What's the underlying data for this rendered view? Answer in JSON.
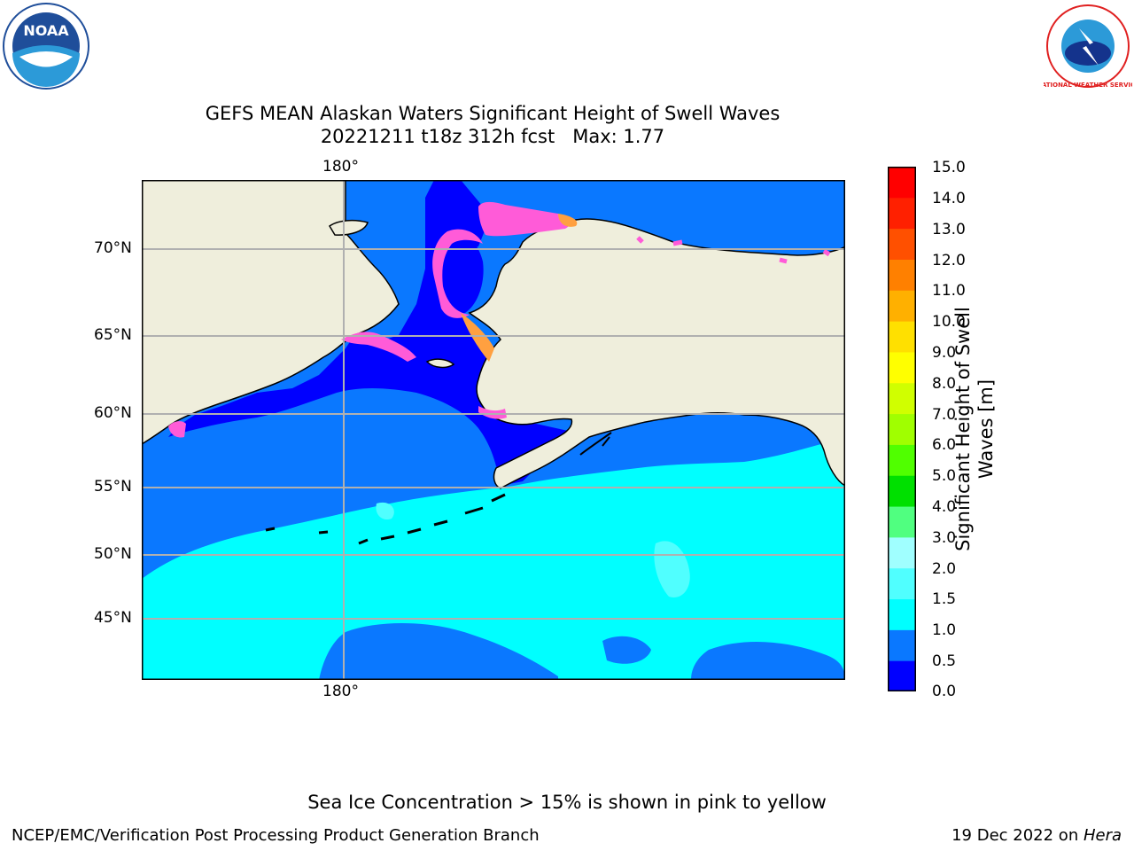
{
  "header": {
    "title_line1": "GEFS MEAN Alaskan Waters Significant Height of Swell Waves",
    "title_line2": "20221211 t18z 312h fcst   Max: 1.77"
  },
  "logos": {
    "left": {
      "name": "NOAA",
      "text": "NOAA",
      "color": "#1f4e9a"
    },
    "right": {
      "name": "National Weather Service",
      "text": "NATIONAL WEATHER SERVICE",
      "color": "#e02020"
    }
  },
  "map": {
    "lon_label_top": "180°",
    "lon_label_bottom": "180°",
    "lat_labels": [
      "70°N",
      "65°N",
      "60°N",
      "55°N",
      "50°N",
      "45°N"
    ],
    "colors": {
      "land": "#efeedc",
      "ice_low": "#ff5bd8",
      "ice_high": "#ffa040",
      "grid": "#b0b0b0"
    }
  },
  "colorbar": {
    "label_line1": "Significant Height of Swell",
    "label_line2": "Waves [m]",
    "ticks": [
      "15.0",
      "14.0",
      "13.0",
      "12.0",
      "11.0",
      "10.0",
      "9.0",
      "8.0",
      "7.0",
      "6.0",
      "5.0",
      "4.0",
      "3.0",
      "2.0",
      "1.5",
      "1.0",
      "0.5",
      "0.0"
    ],
    "colors_bottom_to_top": [
      "#0000ff",
      "#0a78ff",
      "#00ffff",
      "#50ffff",
      "#a0ffff",
      "#50ff80",
      "#00e000",
      "#50ff00",
      "#a0ff00",
      "#d0ff00",
      "#ffff00",
      "#ffe000",
      "#ffb000",
      "#ff8000",
      "#ff5000",
      "#ff2000",
      "#ff0000"
    ]
  },
  "footer": {
    "note": "Sea Ice Concentration > 15% is shown in pink to yellow",
    "left": "NCEP/EMC/Verification Post Processing Product Generation Branch",
    "right_prefix": "19 Dec 2022 on ",
    "right_host": "Hera"
  }
}
